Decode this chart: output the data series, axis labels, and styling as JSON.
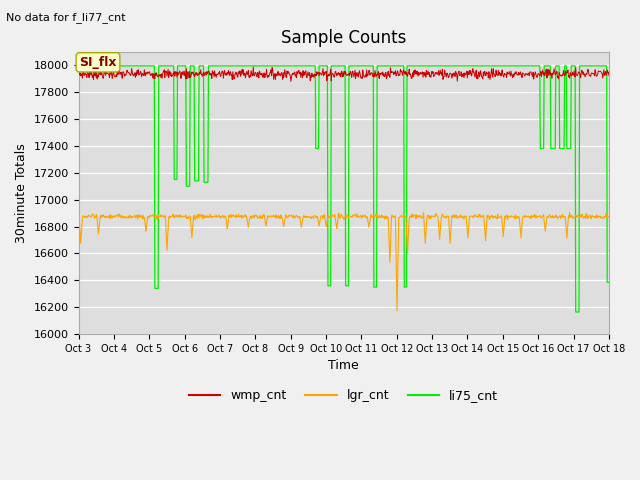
{
  "title": "Sample Counts",
  "subtitle": "No data for f_li77_cnt",
  "xlabel": "Time",
  "ylabel": "30minute Totals",
  "ylim": [
    16000,
    18100
  ],
  "yticks": [
    16000,
    16200,
    16400,
    16600,
    16800,
    17000,
    17200,
    17400,
    17600,
    17800,
    18000
  ],
  "xtick_labels": [
    "Oct 3",
    "Oct 4",
    "Oct 5",
    "Oct 6",
    "Oct 7",
    "Oct 8",
    "Oct 9",
    "Oct 10",
    "Oct 11",
    "Oct 12",
    "Oct 13",
    "Oct 14",
    "Oct 15",
    "Oct 16",
    "Oct 17",
    "Oct 18"
  ],
  "bg_color": "#dedede",
  "fig_color": "#f0f0f0",
  "wmp_color": "#cc0000",
  "lgr_color": "#ffa500",
  "li75_color": "#00ee00",
  "annotation_text": "SI_flx",
  "num_points": 960,
  "wmp_base": 17935,
  "wmp_noise": 18,
  "lgr_base": 16875,
  "lgr_noise": 8,
  "li75_base": 17995
}
